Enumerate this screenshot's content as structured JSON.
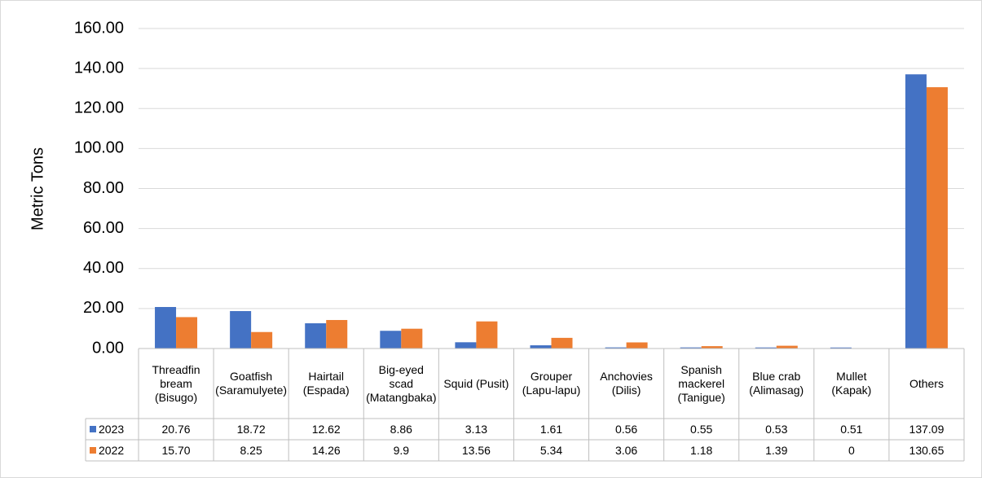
{
  "chart_data": {
    "type": "bar",
    "y_label": "Metric Tons",
    "categories": [
      "Threadfin bream (Bisugo)",
      "Goatfish (Saramulyete)",
      "Hairtail (Espada)",
      "Big-eyed scad (Matangbaka)",
      "Squid (Pusit)",
      "Grouper (Lapu-lapu)",
      "Anchovies (Dilis)",
      "Spanish mackerel (Tanigue)",
      "Blue crab (Alimasag)",
      "Mullet (Kapak)",
      "Others"
    ],
    "series": [
      {
        "name": "2023",
        "color": "#4472c4",
        "values": [
          20.76,
          18.72,
          12.62,
          8.86,
          3.13,
          1.61,
          0.56,
          0.55,
          0.53,
          0.51,
          137.09
        ]
      },
      {
        "name": "2022",
        "color": "#ed7d31",
        "values": [
          15.7,
          8.25,
          14.26,
          9.9,
          13.56,
          5.34,
          3.06,
          1.18,
          1.39,
          0,
          130.65
        ],
        "value_labels": [
          "15.70",
          "8.25",
          "14.26",
          "9.9",
          "13.56",
          "5.34",
          "3.06",
          "1.18",
          "1.39",
          "0",
          "130.65"
        ]
      }
    ],
    "ylim": [
      0,
      160
    ],
    "yticks": [
      {
        "value": 0,
        "label": "0.00"
      },
      {
        "value": 20,
        "label": "20.00"
      },
      {
        "value": 40,
        "label": "40.00"
      },
      {
        "value": 60,
        "label": "60.00"
      },
      {
        "value": 80,
        "label": "80.00"
      },
      {
        "value": 100,
        "label": "100.00"
      },
      {
        "value": 120,
        "label": "120.00"
      },
      {
        "value": 140,
        "label": "140.00"
      },
      {
        "value": 160,
        "label": "160.00"
      }
    ],
    "grid": true
  }
}
